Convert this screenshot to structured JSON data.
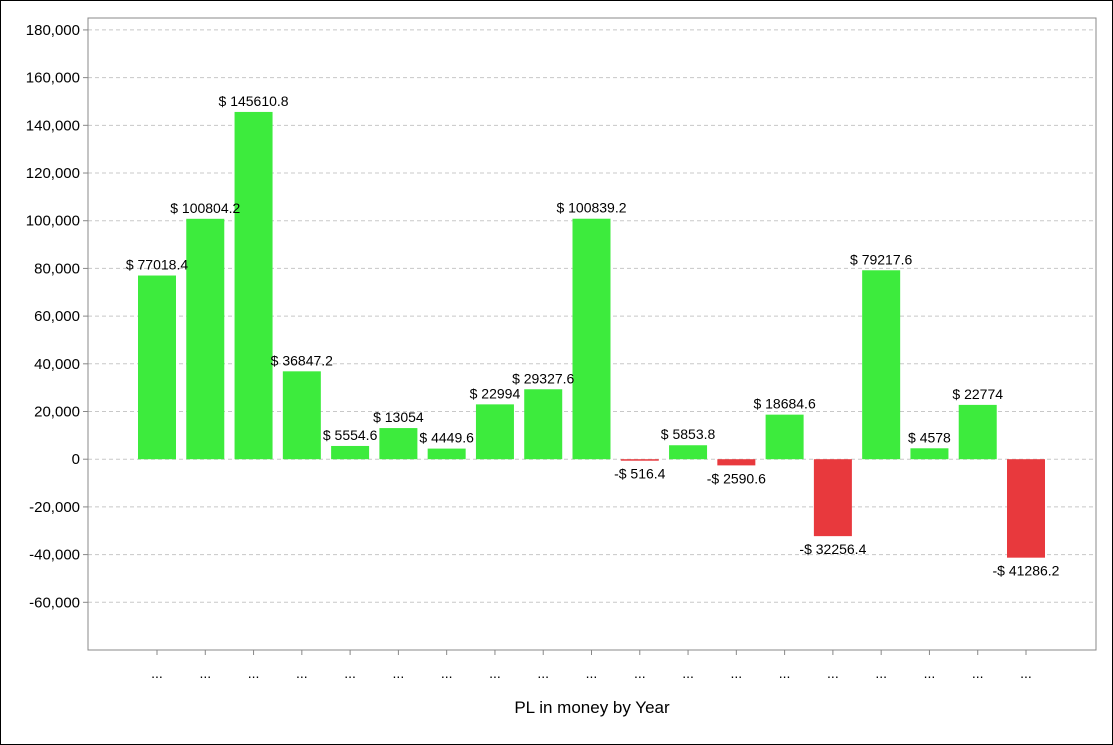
{
  "chart_data": {
    "type": "bar",
    "xlabel": "PL in money by Year",
    "ylabel": "",
    "ylim": [
      -80000,
      185000
    ],
    "yticks": [
      -60000,
      -40000,
      -20000,
      0,
      20000,
      40000,
      60000,
      80000,
      100000,
      120000,
      140000,
      160000,
      180000
    ],
    "ytick_labels": [
      "-60,000",
      "-40,000",
      "-20,000",
      "0",
      "20,000",
      "40,000",
      "60,000",
      "80,000",
      "100,000",
      "120,000",
      "140,000",
      "160,000",
      "180,000"
    ],
    "grid": true,
    "categories": [
      "...",
      "...",
      "...",
      "...",
      "...",
      "...",
      "...",
      "...",
      "...",
      "...",
      "...",
      "...",
      "...",
      "...",
      "...",
      "...",
      "...",
      "...",
      "..."
    ],
    "values": [
      77018.4,
      100804.2,
      145610.8,
      36847.2,
      5554.6,
      13054,
      4449.6,
      22994,
      29327.6,
      100839.2,
      -516.4,
      5853.8,
      -2590.6,
      18684.6,
      -32256.4,
      79217.6,
      4578,
      22774,
      -41286.2
    ],
    "data_labels": [
      "$ 77018.4",
      "$ 100804.2",
      "$ 145610.8",
      "$ 36847.2",
      "$ 5554.6",
      "$ 13054",
      "$ 4449.6",
      "$ 22994",
      "$ 29327.6",
      "$ 100839.2",
      "-$ 516.4",
      "$ 5853.8",
      "-$ 2590.6",
      "$ 18684.6",
      "-$ 32256.4",
      "$ 79217.6",
      "$ 4578",
      "$ 22774",
      "-$ 41286.2"
    ],
    "colors": {
      "positive": "#3deb3d",
      "negative": "#e8393d",
      "grid": "#c8c8c8",
      "axis": "#888888"
    }
  }
}
